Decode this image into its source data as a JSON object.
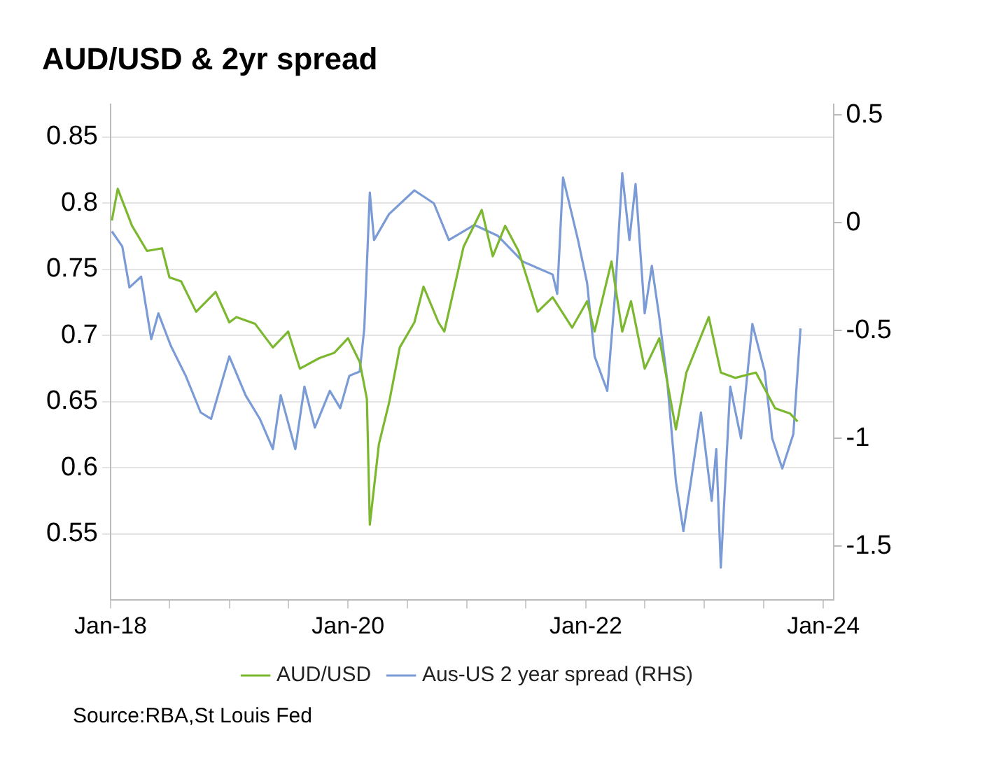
{
  "chart_data": {
    "type": "line",
    "title": "AUD/USD & 2yr spread",
    "annotations": [
      "Source:RBA,St Louis Fed"
    ],
    "legend": "bottom",
    "grid": "y",
    "marker": "none",
    "line_style": "solid",
    "xlim": [
      "2018-01",
      "2024-02"
    ],
    "xticks": [
      {
        "value": "2018-01",
        "label": "Jan-18"
      },
      {
        "value": "2018-07",
        "label": null
      },
      {
        "value": "2019-01",
        "label": null
      },
      {
        "value": "2019-07",
        "label": null
      },
      {
        "value": "2020-01",
        "label": "Jan-20"
      },
      {
        "value": "2020-07",
        "label": null
      },
      {
        "value": "2021-01",
        "label": null
      },
      {
        "value": "2021-07",
        "label": null
      },
      {
        "value": "2022-01",
        "label": "Jan-22"
      },
      {
        "value": "2022-07",
        "label": null
      },
      {
        "value": "2023-01",
        "label": null
      },
      {
        "value": "2023-07",
        "label": null
      },
      {
        "value": "2024-01",
        "label": "Jan-24"
      }
    ],
    "ylim": [
      0.5,
      0.875
    ],
    "yticks": [
      0.55,
      0.6,
      0.65,
      0.7,
      0.75,
      0.8,
      0.85
    ],
    "y2lim": [
      -1.75,
      0.55
    ],
    "y2ticks": [
      -1.5,
      -1,
      -0.5,
      0,
      0.5
    ],
    "series": [
      {
        "name": "AUD/USD",
        "color": "#7cb82f",
        "x": [
          "2018-01-05",
          "2018-01-23",
          "2018-03-08",
          "2018-04-23",
          "2018-06-08",
          "2018-07-01",
          "2018-08-06",
          "2018-09-21",
          "2018-11-20",
          "2019-01-01",
          "2019-01-23",
          "2019-03-21",
          "2019-05-15",
          "2019-07-01",
          "2019-08-06",
          "2019-10-05",
          "2019-11-20",
          "2020-01-01",
          "2020-02-06",
          "2020-02-28",
          "2020-03-08",
          "2020-04-05",
          "2020-05-06",
          "2020-06-08",
          "2020-07-23",
          "2020-08-20",
          "2020-10-05",
          "2020-10-23",
          "2020-12-21",
          "2021-02-15",
          "2021-03-21",
          "2021-04-28",
          "2021-06-08",
          "2021-08-06",
          "2021-09-21",
          "2021-11-20",
          "2022-01-05",
          "2022-01-28",
          "2022-03-21",
          "2022-04-23",
          "2022-05-20",
          "2022-07-01",
          "2022-08-15",
          "2022-10-05",
          "2022-11-06",
          "2023-01-14",
          "2023-02-20",
          "2023-04-05",
          "2023-06-08",
          "2023-08-06",
          "2023-09-21",
          "2023-10-14"
        ],
        "values": [
          0.787,
          0.811,
          0.783,
          0.764,
          0.766,
          0.744,
          0.741,
          0.718,
          0.733,
          0.71,
          0.714,
          0.709,
          0.691,
          0.703,
          0.675,
          0.683,
          0.687,
          0.698,
          0.68,
          0.652,
          0.557,
          0.618,
          0.649,
          0.691,
          0.71,
          0.737,
          0.71,
          0.703,
          0.767,
          0.795,
          0.76,
          0.783,
          0.764,
          0.718,
          0.729,
          0.706,
          0.726,
          0.703,
          0.756,
          0.703,
          0.726,
          0.675,
          0.698,
          0.629,
          0.672,
          0.714,
          0.672,
          0.668,
          0.672,
          0.645,
          0.641,
          0.635
        ]
      },
      {
        "name": "Aus-US 2 year spread (RHS)",
        "color": "#7b9bd6",
        "axis": "y2",
        "x": [
          "2018-01-05",
          "2018-02-06",
          "2018-02-28",
          "2018-04-05",
          "2018-05-06",
          "2018-05-28",
          "2018-07-05",
          "2018-08-20",
          "2018-10-05",
          "2018-11-06",
          "2019-01-01",
          "2019-02-20",
          "2019-04-05",
          "2019-05-15",
          "2019-06-08",
          "2019-07-23",
          "2019-08-20",
          "2019-09-21",
          "2019-11-06",
          "2019-12-08",
          "2020-01-05",
          "2020-02-06",
          "2020-02-20",
          "2020-03-08",
          "2020-03-21",
          "2020-05-06",
          "2020-07-23",
          "2020-09-21",
          "2020-11-06",
          "2021-01-23",
          "2021-04-05",
          "2021-06-21",
          "2021-09-21",
          "2021-10-05",
          "2021-10-23",
          "2021-12-08",
          "2022-01-05",
          "2022-01-28",
          "2022-03-08",
          "2022-04-01",
          "2022-04-23",
          "2022-05-15",
          "2022-06-03",
          "2022-07-01",
          "2022-07-23",
          "2022-08-15",
          "2022-09-08",
          "2022-10-05",
          "2022-10-28",
          "2022-11-20",
          "2022-12-21",
          "2023-01-23",
          "2023-02-06",
          "2023-02-20",
          "2023-03-21",
          "2023-04-23",
          "2023-05-28",
          "2023-07-05",
          "2023-07-28",
          "2023-08-28",
          "2023-10-01",
          "2023-10-23"
        ],
        "values": [
          -0.04,
          -0.11,
          -0.3,
          -0.25,
          -0.54,
          -0.42,
          -0.57,
          -0.71,
          -0.88,
          -0.91,
          -0.62,
          -0.8,
          -0.91,
          -1.05,
          -0.8,
          -1.05,
          -0.76,
          -0.95,
          -0.78,
          -0.86,
          -0.71,
          -0.69,
          -0.49,
          0.14,
          -0.08,
          0.04,
          0.15,
          0.09,
          -0.08,
          -0.01,
          -0.06,
          -0.18,
          -0.24,
          -0.33,
          0.21,
          -0.08,
          -0.28,
          -0.62,
          -0.78,
          -0.33,
          0.23,
          -0.08,
          0.18,
          -0.42,
          -0.2,
          -0.44,
          -0.73,
          -1.2,
          -1.43,
          -1.2,
          -0.88,
          -1.29,
          -1.05,
          -1.6,
          -0.76,
          -1.0,
          -0.47,
          -0.69,
          -1.0,
          -1.14,
          -0.98,
          -0.49
        ]
      }
    ]
  }
}
